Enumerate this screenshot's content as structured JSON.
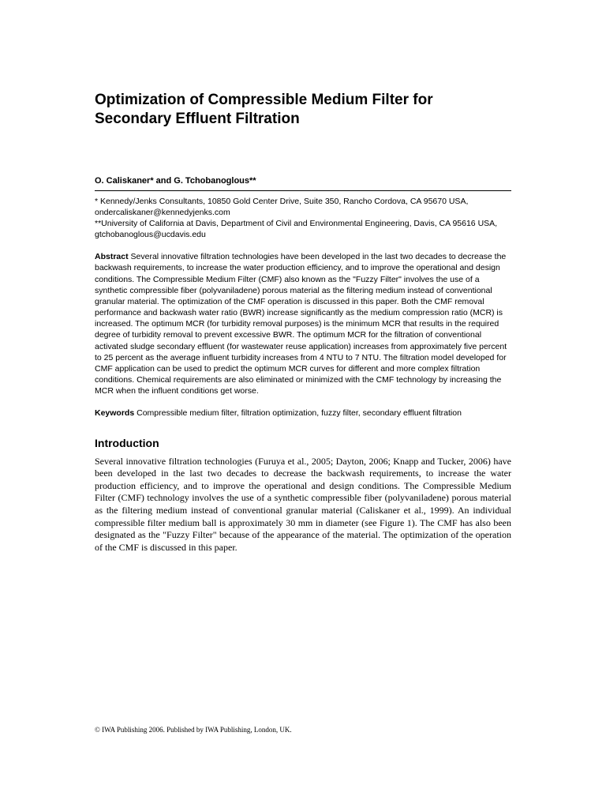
{
  "title": "Optimization of Compressible Medium Filter for Secondary Effluent Filtration",
  "authors": "O. Caliskaner* and G. Tchobanoglous**",
  "affiliations": "* Kennedy/Jenks Consultants, 10850 Gold Center Drive, Suite 350, Rancho Cordova, CA 95670 USA, ondercaliskaner@kennedyjenks.com\n**University of California at Davis, Department of Civil and Environmental Engineering, Davis, CA 95616 USA, gtchobanoglous@ucdavis.edu",
  "abstract_label": "Abstract",
  "abstract_text": " Several innovative filtration technologies have been developed in the last two decades to decrease the backwash requirements, to increase the water production efficiency, and to improve the operational and design conditions. The Compressible Medium Filter (CMF) also known as the \"Fuzzy Filter\" involves the use of a synthetic compressible fiber (polyvaniladene) porous material as the filtering medium instead of conventional granular material. The optimization of the CMF operation is discussed in this paper. Both the CMF removal performance and backwash water ratio (BWR) increase significantly as the medium compression ratio (MCR) is increased. The optimum MCR (for turbidity removal purposes) is the minimum MCR that results in the required degree of turbidity removal to prevent excessive BWR. The optimum MCR for the filtration of conventional activated sludge secondary effluent (for wastewater reuse application) increases from approximately five percent to 25 percent as the average influent turbidity increases from 4 NTU to 7 NTU. The filtration model developed for CMF application can be used to predict the optimum MCR curves for different and more complex filtration conditions. Chemical requirements are also eliminated or minimized with the CMF technology by increasing the MCR when the influent conditions get worse.",
  "keywords_label": "Keywords",
  "keywords_text": " Compressible medium filter, filtration optimization, fuzzy filter, secondary effluent filtration",
  "section_heading": "Introduction",
  "intro_text": "Several innovative filtration technologies (Furuya et al., 2005; Dayton, 2006; Knapp and Tucker, 2006) have been developed in the last two decades to decrease the backwash requirements, to increase the water production efficiency, and to improve the operational and design conditions. The Compressible Medium Filter (CMF) technology involves the use of a synthetic compressible fiber (polyvaniladene) porous material as the filtering medium instead of conventional granular material (Caliskaner et al., 1999). An individual compressible filter medium ball is approximately 30 mm in diameter (see Figure 1). The CMF has also been designated as the \"Fuzzy Filter\" because of the appearance of the material. The optimization of the operation of the CMF is discussed in this paper.",
  "footer": "© IWA Publishing 2006. Published by IWA Publishing, London, UK."
}
